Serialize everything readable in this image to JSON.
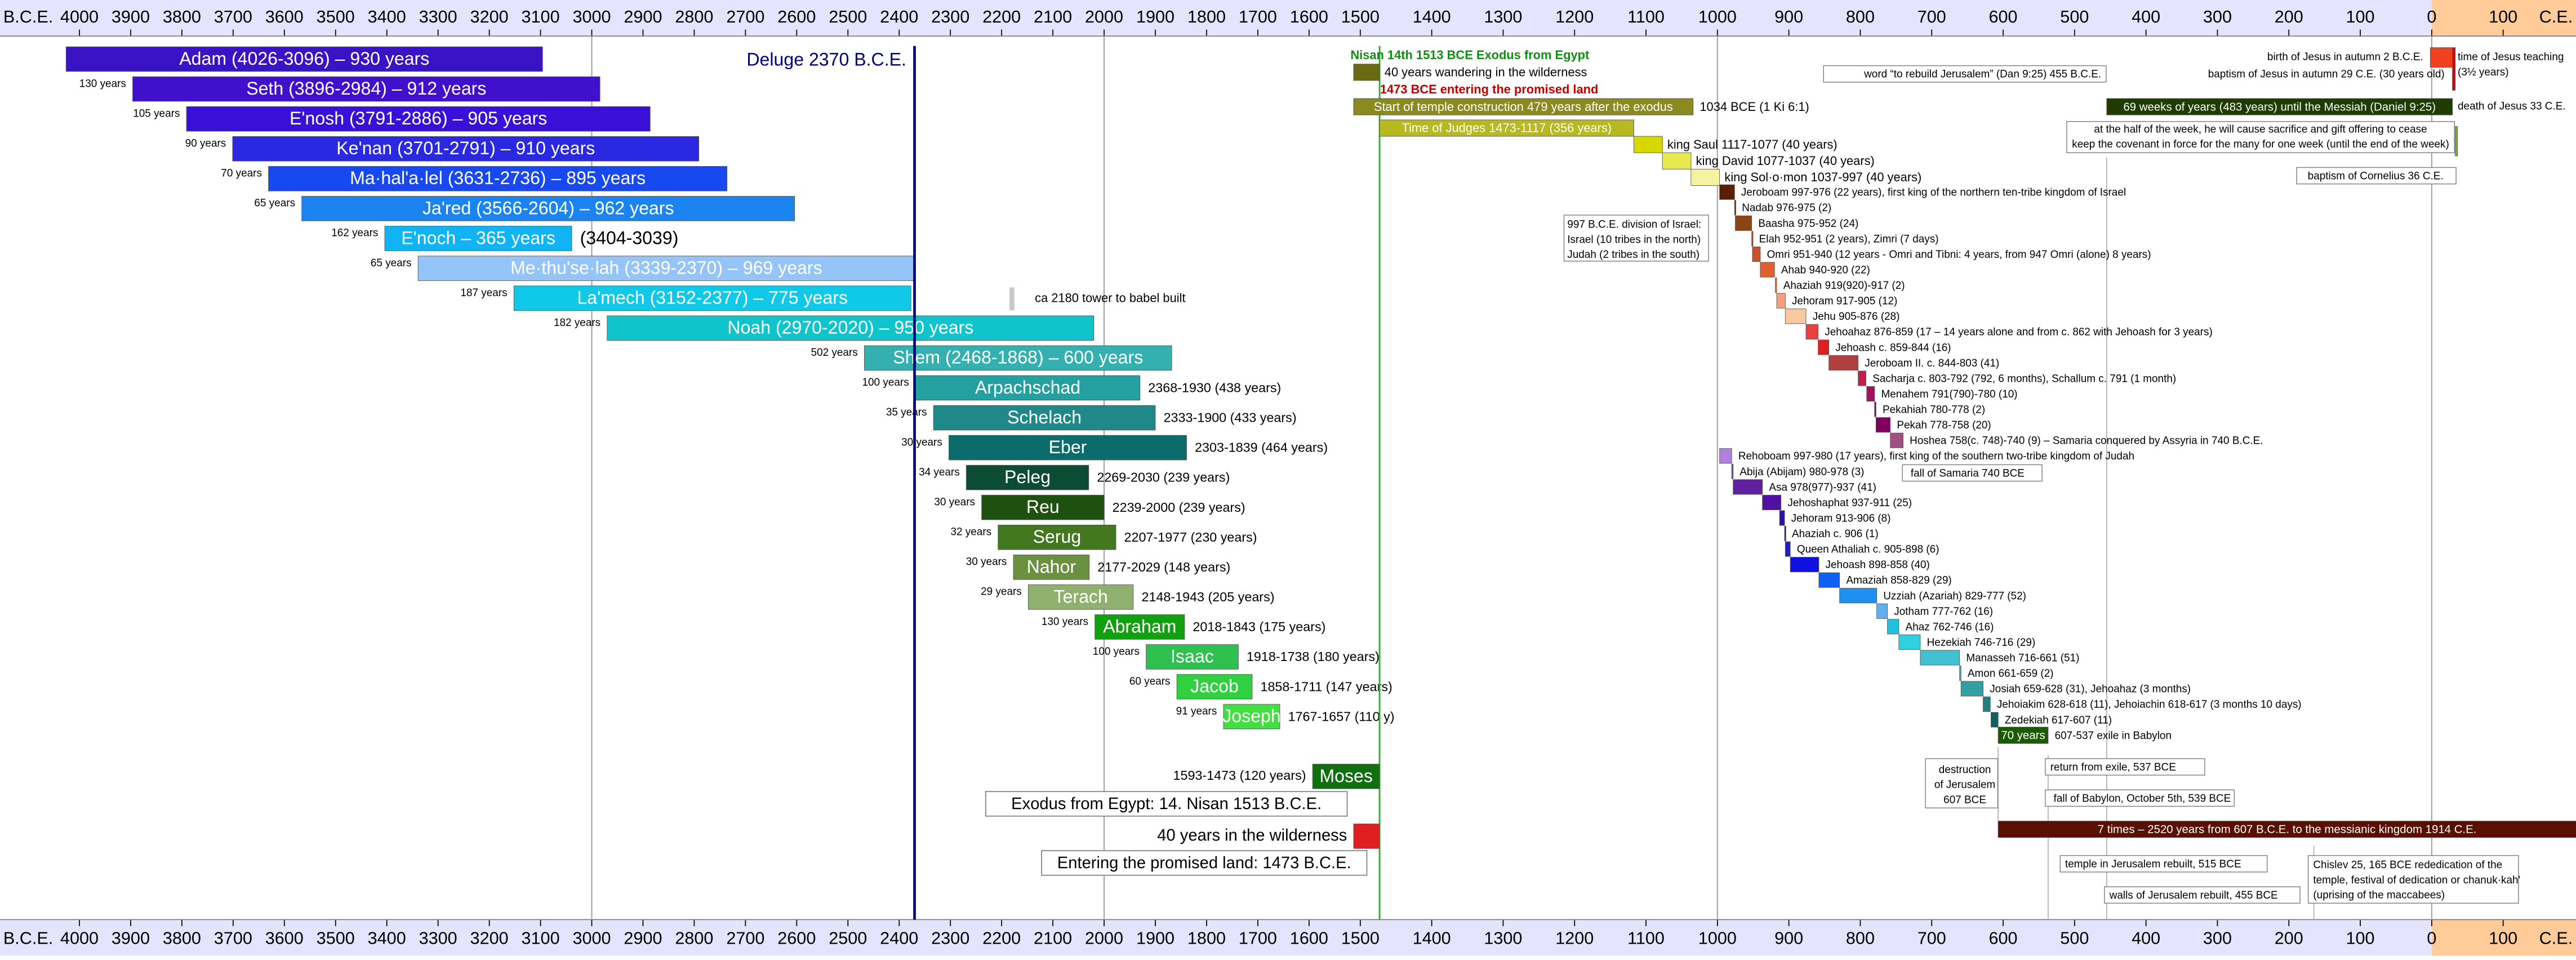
{
  "chart_data": {
    "type": "timeline",
    "xlim": [
      4155,
      -202
    ],
    "scale_break": 1500,
    "xticks": [
      4000,
      3900,
      3800,
      3700,
      3600,
      3500,
      3400,
      3300,
      3200,
      3100,
      3000,
      2900,
      2800,
      2700,
      2600,
      2500,
      2400,
      2300,
      2200,
      2100,
      2000,
      1900,
      1800,
      1700,
      1600,
      1500,
      1400,
      1300,
      1200,
      1100,
      1000,
      900,
      800,
      700,
      600,
      500,
      400,
      300,
      200,
      100,
      0,
      {
        "value": -100,
        "label": "100"
      }
    ],
    "era_labels": [
      "B.C.E.",
      "C.E."
    ],
    "axis_color": "#e4e4ff",
    "ce_region": {
      "from": 0,
      "color": "#ffcc99"
    },
    "grid_lines": [
      3000,
      2000,
      1000,
      0
    ],
    "patriarchs": [
      {
        "label": "Adam (4026-3096) – 930 years",
        "start": 4026,
        "end": 3096,
        "color": "#3a14c4"
      },
      {
        "label": "Seth (3896-2984) – 912 years",
        "start": 3896,
        "end": 2984,
        "color": "#4010cc",
        "gap": "130 years"
      },
      {
        "label": "E'nosh (3791-2886) – 905 years",
        "start": 3791,
        "end": 2886,
        "color": "#3810d8",
        "gap": "105 years"
      },
      {
        "label": "Ke'nan (3701-2791) – 910 years",
        "start": 3701,
        "end": 2791,
        "color": "#2a28e0",
        "gap": "90 years"
      },
      {
        "label": "Ma·hal'a·lel (3631-2736) – 895 years",
        "start": 3631,
        "end": 2736,
        "color": "#1848f0",
        "gap": "70 years"
      },
      {
        "label": "Ja'red (3566-2604) – 962 years",
        "start": 3566,
        "end": 2604,
        "color": "#1c84f0",
        "gap": "65 years"
      },
      {
        "label": "E'noch – 365 years",
        "start": 3404,
        "end": 3039,
        "color": "#10b4f4",
        "gap": "162 years",
        "note": "(3404-3039)"
      },
      {
        "label": "Me·thu'se·lah (3339-2370) – 969 years",
        "start": 3339,
        "end": 2370,
        "color": "#94c4f8",
        "gap": "65 years"
      },
      {
        "label": "La'mech (3152-2377) – 775 years",
        "start": 3152,
        "end": 2377,
        "color": "#10c8e8",
        "gap": "187 years"
      },
      {
        "label": "Noah (2970-2020) – 950 years",
        "start": 2970,
        "end": 2020,
        "color": "#10c4cc",
        "gap": "182 years"
      },
      {
        "label": "Shem (2468-1868) – 600 years",
        "start": 2468,
        "end": 1868,
        "color": "#34b0b0",
        "gap": "502 years"
      },
      {
        "label": "Arpachschad",
        "start": 2368,
        "end": 1930,
        "color": "#24a0a0",
        "gap": "100 years",
        "note": "2368-1930 (438 years)"
      },
      {
        "label": "Schelach",
        "start": 2333,
        "end": 1900,
        "color": "#208888",
        "gap": "35 years",
        "note": "2333-1900 (433 years)"
      },
      {
        "label": "Eber",
        "start": 2303,
        "end": 1839,
        "color": "#0c6c6c",
        "gap": "30 years",
        "note": "2303-1839 (464 years)"
      },
      {
        "label": "Peleg",
        "start": 2269,
        "end": 2030,
        "color": "#0c4c34",
        "gap": "34 years",
        "note": "2269-2030 (239 years)"
      },
      {
        "label": "Reu",
        "start": 2239,
        "end": 2000,
        "color": "#1e5010",
        "gap": "30 years",
        "note": "2239-2000 (239 years)"
      },
      {
        "label": "Serug",
        "start": 2207,
        "end": 1977,
        "color": "#447820",
        "gap": "32 years",
        "note": "2207-1977 (230 years)"
      },
      {
        "label": "Nahor",
        "start": 2177,
        "end": 2029,
        "color": "#6a9040",
        "gap": "30 years",
        "note": "2177-2029 (148 years)"
      },
      {
        "label": "Terach",
        "start": 2148,
        "end": 1943,
        "color": "#90b070",
        "gap": "29 years",
        "note": "2148-1943 (205 years)"
      },
      {
        "label": "Abraham",
        "start": 2018,
        "end": 1843,
        "color": "#10a010",
        "gap": "130 years",
        "note": "2018-1843 (175 years)"
      },
      {
        "label": "Isaac",
        "start": 1918,
        "end": 1738,
        "color": "#30c050",
        "gap": "100 years",
        "note": "1918-1738 (180 years)"
      },
      {
        "label": "Jacob",
        "start": 1858,
        "end": 1711,
        "color": "#30d040",
        "gap": "60 years",
        "note": "1858-1711 (147 years)"
      },
      {
        "label": "Joseph",
        "start": 1767,
        "end": 1657,
        "color": "#40e040",
        "gap": "91 years",
        "note": "1767-1657 (110 y)"
      }
    ],
    "events": [
      {
        "label": "Deluge 2370 B.C.E.",
        "year": 2370,
        "color": "#00007a"
      },
      {
        "label": "ca 2180 tower to babel built",
        "year": 2180,
        "color": "#c8c8c8"
      },
      {
        "year": 1473,
        "color": "#30b030"
      }
    ],
    "lower": {
      "moses": {
        "label": "Moses",
        "start": 1593,
        "end": 1473,
        "color": "#107010",
        "note": "1593-1473 (120 years)"
      },
      "exodus_box": "Exodus from Egypt: 14. Nisan 1513 B.C.E.",
      "wilderness": {
        "label": "40 years in the wilderness",
        "start": 1513,
        "end": 1473,
        "color": "#e02020"
      },
      "entry_box": "Entering the promised land: 1473 B.C.E."
    },
    "kingdom": {
      "exodus_text": "Nisan 14th 1513 BCE Exodus from Egypt",
      "exodus_color": "#109010",
      "entry_text": "1473 BCE entering the promised land",
      "entry_color": "#c00000",
      "bars": [
        {
          "label": "40 years wandering in the wilderness",
          "start": 1513,
          "end": 1473,
          "color": "#6a6a10"
        },
        {
          "label": "Start of temple construction 479 years after the exodus",
          "start": 1513,
          "end": 1034,
          "color": "#8a8a20",
          "note": "1034 BCE (1 Ki 6:1)"
        },
        {
          "label": "Time of Judges 1473-1117 (356 years)",
          "start": 1473,
          "end": 1117,
          "color": "#b8b820"
        },
        {
          "label": "king Saul 1117-1077 (40 years)",
          "start": 1117,
          "end": 1077,
          "color": "#d8d800"
        },
        {
          "label": "king David 1077-1037 (40 years)",
          "start": 1077,
          "end": 1037,
          "color": "#e8e850"
        },
        {
          "label": "king Sol·o·mon 1037-997 (40 years)",
          "start": 1037,
          "end": 997,
          "color": "#f4f4a0"
        }
      ],
      "kings": [
        {
          "label": "Jeroboam 997-976 (22 years), first king of the northern ten-tribe kingdom of Israel",
          "start": 997,
          "end": 976,
          "color": "#5a1e00"
        },
        {
          "label": "Nadab 976-975 (2)",
          "start": 976,
          "end": 975,
          "color": "#7a3a10"
        },
        {
          "label": "Baasha 975-952 (24)",
          "start": 975,
          "end": 952,
          "color": "#8b4513"
        },
        {
          "label": "Elah 952-951 (2 years), Zimri (7 days)",
          "start": 952,
          "end": 951,
          "color": "#a0522d"
        },
        {
          "label": "Omri 951-940 (12 years - Omri and Tibni: 4 years, from 947 Omri (alone) 8 years)",
          "start": 951,
          "end": 940,
          "color": "#c8502a"
        },
        {
          "label": "Ahab 940-920 (22)",
          "start": 940,
          "end": 920,
          "color": "#e06030"
        },
        {
          "label": "Ahaziah 919(920)-917 (2)",
          "start": 919,
          "end": 917,
          "color": "#f08050"
        },
        {
          "label": "Jehoram 917-905 (12)",
          "start": 917,
          "end": 905,
          "color": "#f4a080"
        },
        {
          "label": "Jehu 905-876 (28)",
          "start": 905,
          "end": 876,
          "color": "#f8c8a0"
        },
        {
          "label": "Jehoahaz 876-859 (17 – 14 years alone and from c. 862 with Jehoash for 3 years)",
          "start": 876,
          "end": 859,
          "color": "#e84040"
        },
        {
          "label": "Jehoash c. 859-844 (16)",
          "start": 859,
          "end": 844,
          "color": "#e02020"
        },
        {
          "label": "Jeroboam II. c. 844-803 (41)",
          "start": 844,
          "end": 803,
          "color": "#b04040"
        },
        {
          "label": "Sacharja c. 803-792 (792, 6 months), Schallum c. 791 (1 month)",
          "start": 803,
          "end": 792,
          "color": "#c0204c"
        },
        {
          "label": "Menahem 791(790)-780 (10)",
          "start": 791,
          "end": 780,
          "color": "#a01060"
        },
        {
          "label": "Pekahiah 780-778 (2)",
          "start": 780,
          "end": 778,
          "color": "#900060"
        },
        {
          "label": "Pekah 778-758 (20)",
          "start": 778,
          "end": 758,
          "color": "#800060"
        },
        {
          "label": "Hoshea 758(c. 748)-740 (9) – Samaria conquered by Assyria in 740 B.C.E.",
          "start": 758,
          "end": 740,
          "color": "#a05080"
        },
        {
          "label": "Rehoboam 997-980 (17 years), first king of the southern two-tribe kingdom of Judah",
          "start": 997,
          "end": 980,
          "color": "#b080e0"
        },
        {
          "label": "Abija (Abijam) 980-978 (3)",
          "start": 980,
          "end": 978,
          "color": "#8040c0"
        },
        {
          "label": "Asa 978(977)-937 (41)",
          "start": 978,
          "end": 937,
          "color": "#6020a0"
        },
        {
          "label": "Jehoshaphat 937-911 (25)",
          "start": 937,
          "end": 911,
          "color": "#5010a0"
        },
        {
          "label": "Jehoram 913-906 (8)",
          "start": 913,
          "end": 906,
          "color": "#3010a0"
        },
        {
          "label": "Ahaziah c. 906 (1)",
          "start": 906,
          "end": 905,
          "color": "#2020a0"
        },
        {
          "label": "Queen Athaliah c. 905-898 (6)",
          "start": 905,
          "end": 898,
          "color": "#2020c0"
        },
        {
          "label": "Jehoash 898-858 (40)",
          "start": 898,
          "end": 858,
          "color": "#1010e0"
        },
        {
          "label": "Amaziah 858-829 (29)",
          "start": 858,
          "end": 829,
          "color": "#1060f0"
        },
        {
          "label": "Uzziah (Azariah) 829-777 (52)",
          "start": 829,
          "end": 777,
          "color": "#2090f0"
        },
        {
          "label": "Jotham 777-762 (16)",
          "start": 777,
          "end": 762,
          "color": "#60b0f0"
        },
        {
          "label": "Ahaz 762-746 (16)",
          "start": 762,
          "end": 746,
          "color": "#20c0e0"
        },
        {
          "label": "Hezekiah 746-716 (29)",
          "start": 746,
          "end": 716,
          "color": "#30d0e0"
        },
        {
          "label": "Manasseh 716-661 (51)",
          "start": 716,
          "end": 661,
          "color": "#40c0d0"
        },
        {
          "label": "Amon 661-659 (2)",
          "start": 661,
          "end": 659,
          "color": "#40b0b0"
        },
        {
          "label": "Josiah 659-628 (31), Jehoahaz (3 months)",
          "start": 659,
          "end": 628,
          "color": "#30a0a0"
        },
        {
          "label": "Jehoiakim 628-618 (11), Jehoiachin 618-617 (3 months 10 days)",
          "start": 628,
          "end": 618,
          "color": "#208080"
        },
        {
          "label": "Zedekiah 617-607 (11)",
          "start": 617,
          "end": 607,
          "color": "#106060"
        }
      ],
      "exile": {
        "label": "70 years",
        "start": 607,
        "end": 537,
        "color": "#1a5a00",
        "note": "607-537 exile in Babylon"
      },
      "gentile_times": {
        "label": "7 times – 2520 years from 607 B.C.E. to the messianic kingdom 1914 C.E.",
        "start": 607,
        "end": -1914,
        "color": "#5a1000"
      }
    },
    "messiah": {
      "weeks": {
        "label": "69 weeks of years (483 years) until the Messiah (Daniel 9:25)",
        "start": 455,
        "end": -29,
        "color": "#1e3c00"
      },
      "bars": [
        {
          "start": 2,
          "end": -29,
          "color": "#f04020"
        },
        {
          "start": -29,
          "end": -33,
          "color": "#c01010"
        },
        {
          "start": -33,
          "end": -36,
          "color": "#70b030"
        }
      ]
    },
    "guide_years": [
      455,
      607,
      537,
      165
    ],
    "notes": [
      {
        "text": "word “to rebuild Jerusalem” (Dan 9:25) 455 B.C.E."
      },
      {
        "text": "birth of Jesus in autumn 2 B.C.E."
      },
      {
        "text": "baptism of Jesus in autumn 29 C.E. (30 years old)"
      },
      {
        "lines": [
          "time of Jesus teaching",
          "(3½ years)"
        ]
      },
      {
        "text": "death of Jesus 33 C.E."
      },
      {
        "lines": [
          "at the half of the week, he will cause sacrifice and gift offering to cease",
          "keep the covenant in force for the many for one week (until the end of the week)"
        ]
      },
      {
        "text": "baptism of Cornelius 36 C.E."
      },
      {
        "lines": [
          "997 B.C.E. division of Israel:",
          "Israel (10 tribes in the north)",
          "Judah (2 tribes in the south)"
        ]
      },
      {
        "text": "fall of Samaria 740 BCE"
      },
      {
        "lines": [
          "destruction",
          "of Jerusalem",
          "607 BCE"
        ]
      },
      {
        "text": "return from exile, 537 BCE"
      },
      {
        "text": "fall of Babylon, October 5th, 539 BCE"
      },
      {
        "text": "temple in Jerusalem rebuilt, 515 BCE"
      },
      {
        "text": "walls of Jerusalem rebuilt, 455 BCE"
      },
      {
        "lines": [
          "Chislev 25, 165 BCE rededication of the",
          "temple, festival of dedication or chanuk·kah'",
          "(uprising of the maccabees)"
        ]
      }
    ]
  }
}
